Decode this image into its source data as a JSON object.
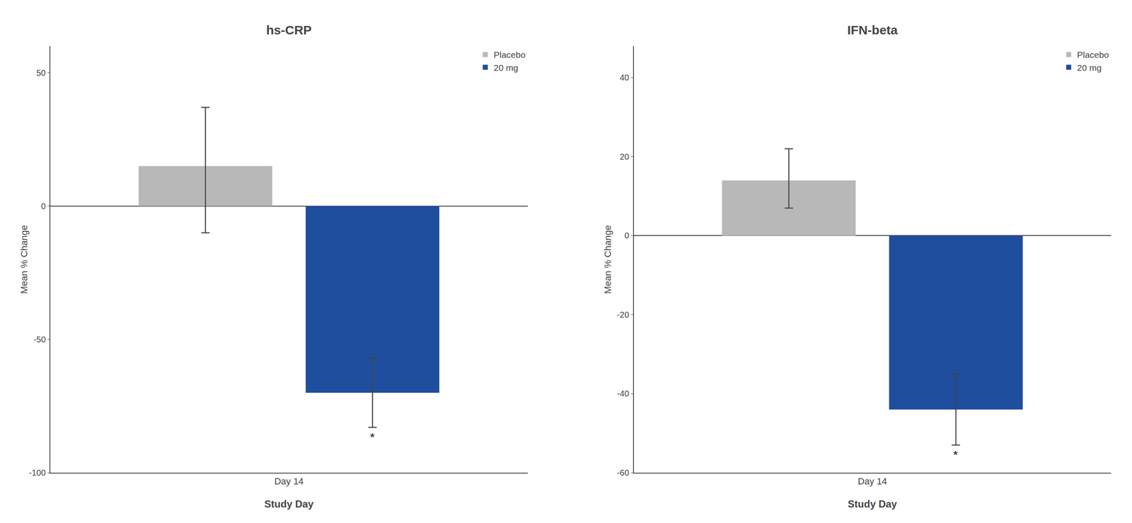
{
  "chart_data": [
    {
      "type": "bar",
      "title": "hs-CRP",
      "categories": [
        "Day 14"
      ],
      "series": [
        {
          "name": "Placebo",
          "color": "#b8b8b8",
          "values": [
            15
          ],
          "error_low": [
            25
          ],
          "error_high": [
            22
          ]
        },
        {
          "name": "20 mg",
          "color": "#1f4e9e",
          "values": [
            -70
          ],
          "error_low": [
            13
          ],
          "error_high": [
            13
          ]
        }
      ],
      "xlabel": "Study Day",
      "ylabel": "Mean % Change",
      "ylim": [
        -100,
        60
      ],
      "yticks": [
        -100,
        -50,
        0,
        50
      ],
      "grid": false,
      "legend": "upper right",
      "annotations": [
        {
          "text": "*",
          "series": "20 mg"
        }
      ]
    },
    {
      "type": "bar",
      "title": "IFN-beta",
      "categories": [
        "Day 14"
      ],
      "series": [
        {
          "name": "Placebo",
          "color": "#b8b8b8",
          "values": [
            14
          ],
          "error_low": [
            7
          ],
          "error_high": [
            8
          ]
        },
        {
          "name": "20 mg",
          "color": "#1f4e9e",
          "values": [
            -44
          ],
          "error_low": [
            9
          ],
          "error_high": [
            9
          ]
        }
      ],
      "xlabel": "Study Day",
      "ylabel": "Mean % Change",
      "ylim": [
        -60,
        48
      ],
      "yticks": [
        -60,
        -40,
        -20,
        0,
        20,
        40
      ],
      "grid": false,
      "legend": "upper right",
      "annotations": [
        {
          "text": "*",
          "series": "20 mg"
        }
      ]
    }
  ]
}
